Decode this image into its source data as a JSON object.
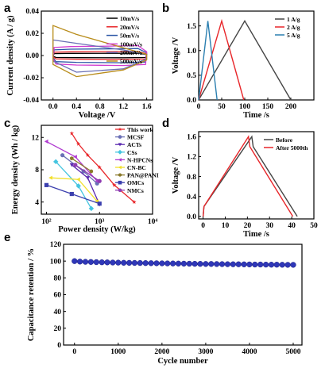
{
  "panel_labels": [
    "a",
    "b",
    "c",
    "d",
    "e"
  ],
  "chart_data": [
    {
      "panel": "a",
      "type": "line",
      "xlabel": "Voltage /V",
      "ylabel": "Current density (A / g)",
      "xlim": [
        -0.2,
        1.7
      ],
      "ylim": [
        -0.04,
        0.04
      ],
      "xticks": [
        "0.0",
        "0.4",
        "0.8",
        "1.2",
        "1.6"
      ],
      "yticks": [
        "-0.04",
        "-0.02",
        "0.00",
        "0.02",
        "0.04"
      ],
      "legend_position": "top-right",
      "series": [
        {
          "name": "10mV/s",
          "color": "#000000",
          "upper": 0.002,
          "lower": -0.002
        },
        {
          "name": "20mV/s",
          "color": "#e8262a",
          "upper": 0.0035,
          "lower": -0.0035
        },
        {
          "name": "50mV/s",
          "color": "#2b55a5",
          "upper": 0.006,
          "lower": -0.0065
        },
        {
          "name": "100mV/s",
          "color": "#d03bd0",
          "upper": 0.0085,
          "lower": -0.009
        },
        {
          "name": "200mV/s",
          "color": "#6a6fb5",
          "upper": 0.014,
          "lower": -0.015
        },
        {
          "name": "500mV/s",
          "color": "#b88c1a",
          "upper": 0.026,
          "lower": -0.028
        }
      ]
    },
    {
      "panel": "b",
      "type": "line",
      "xlabel": "Time /s",
      "ylabel": "Voltage /V",
      "xlim": [
        0,
        250
      ],
      "ylim": [
        0,
        1.8
      ],
      "xticks": [
        "0",
        "50",
        "100",
        "150",
        "200"
      ],
      "yticks": [
        "0.0",
        "0.5",
        "1.0",
        "1.5"
      ],
      "legend_position": "top-right",
      "series": [
        {
          "name": "1 A/g",
          "color": "#454545",
          "x": [
            0,
            100,
            200
          ],
          "y": [
            0,
            1.6,
            0
          ]
        },
        {
          "name": "2 A/g",
          "color": "#e8262a",
          "x": [
            0,
            50,
            98
          ],
          "y": [
            0,
            1.6,
            0
          ]
        },
        {
          "name": "5 A/g",
          "color": "#2b7fb0",
          "x": [
            0,
            20,
            40
          ],
          "y": [
            0,
            1.6,
            0
          ]
        }
      ]
    },
    {
      "panel": "c",
      "type": "scatter",
      "xlabel": "Power density (W/kg)",
      "ylabel": "Energy density (Wh / kg)",
      "xscale": "log",
      "xlim": [
        80,
        10000
      ],
      "ylim": [
        2.5,
        13.5
      ],
      "xticks": [
        {
          "value": 100,
          "label": "10²"
        },
        {
          "value": 1000,
          "label": "10³"
        },
        {
          "value": 10000,
          "label": "10⁴"
        }
      ],
      "yticks": [
        "4",
        "8",
        "12"
      ],
      "legend_position": "top-right",
      "series": [
        {
          "name": "This work",
          "color": "#e8262a",
          "marker": "star",
          "x": [
            300,
            400,
            600,
            1000,
            1900,
            4500
          ],
          "y": [
            12.5,
            11.2,
            9.8,
            8.3,
            6.1,
            4.0
          ]
        },
        {
          "name": "MCSF",
          "color": "#6a6fb5",
          "marker": "circle",
          "x": [
            200,
            500,
            900
          ],
          "y": [
            9.8,
            7.8,
            6.3
          ]
        },
        {
          "name": "ACTs",
          "color": "#5b2ab0",
          "marker": "triangle-down",
          "x": [
            300,
            600,
            1000
          ],
          "y": [
            8.6,
            7.0,
            3.7
          ]
        },
        {
          "name": "CSs",
          "color": "#45c5e0",
          "marker": "diamond",
          "x": [
            150,
            400,
            700
          ],
          "y": [
            9.0,
            6.0,
            3.2
          ]
        },
        {
          "name": "N-HPCNs",
          "color": "#b03bd0",
          "marker": "triangle-left",
          "x": [
            100,
            350,
            900
          ],
          "y": [
            11.5,
            9.6,
            6.6
          ]
        },
        {
          "name": "CN-BC",
          "color": "#f2e02a",
          "marker": "triangle-left",
          "x": [
            120,
            400,
            900
          ],
          "y": [
            7.0,
            6.8,
            4.1
          ]
        },
        {
          "name": "PAN@PANI",
          "color": "#8a7a2a",
          "marker": "hexagon",
          "x": [
            300,
            700
          ],
          "y": [
            9.4,
            7.8
          ]
        },
        {
          "name": "OMCs",
          "color": "#3b3fae",
          "marker": "square",
          "x": [
            100,
            300,
            1000
          ],
          "y": [
            6.1,
            5.0,
            3.8
          ]
        },
        {
          "name": "NMCs",
          "color": "#8e3bb0",
          "marker": "circle",
          "x": [
            350,
            1000
          ],
          "y": [
            8.6,
            6.6
          ]
        }
      ]
    },
    {
      "panel": "d",
      "type": "line",
      "xlabel": "Time /s",
      "ylabel": "Voltage /V",
      "xlim": [
        -2,
        50
      ],
      "ylim": [
        -0.05,
        1.7
      ],
      "xticks": [
        "0",
        "10",
        "20",
        "30",
        "40",
        "50"
      ],
      "yticks": [
        "0.0",
        "0.4",
        "0.8",
        "1.2",
        "1.6"
      ],
      "legend_position": "top-right",
      "series": [
        {
          "name": "Before",
          "color": "#454545",
          "x": [
            0,
            0.4,
            22,
            22.6,
            42.5
          ],
          "y": [
            0,
            0.2,
            1.6,
            1.4,
            0
          ]
        },
        {
          "name": "After 5000th",
          "color": "#e8262a",
          "x": [
            0,
            0.4,
            20.5,
            21.1,
            40.5
          ],
          "y": [
            0,
            0.2,
            1.6,
            1.4,
            0
          ]
        }
      ]
    },
    {
      "panel": "e",
      "type": "scatter",
      "xlabel": "Cycle number",
      "ylabel": "Capacitance retention / %",
      "xlim": [
        -250,
        5200
      ],
      "ylim": [
        0,
        120
      ],
      "xticks": [
        "0",
        "1000",
        "2000",
        "3000",
        "4000",
        "5000"
      ],
      "yticks": [
        "0",
        "20",
        "40",
        "60",
        "80",
        "100",
        "120"
      ],
      "legend_position": "none",
      "series": [
        {
          "name": "",
          "color": "#2f37b8",
          "x_start": 0,
          "x_step": 125,
          "count": 41,
          "y_start": 100,
          "y_end": 95.5
        }
      ]
    }
  ]
}
